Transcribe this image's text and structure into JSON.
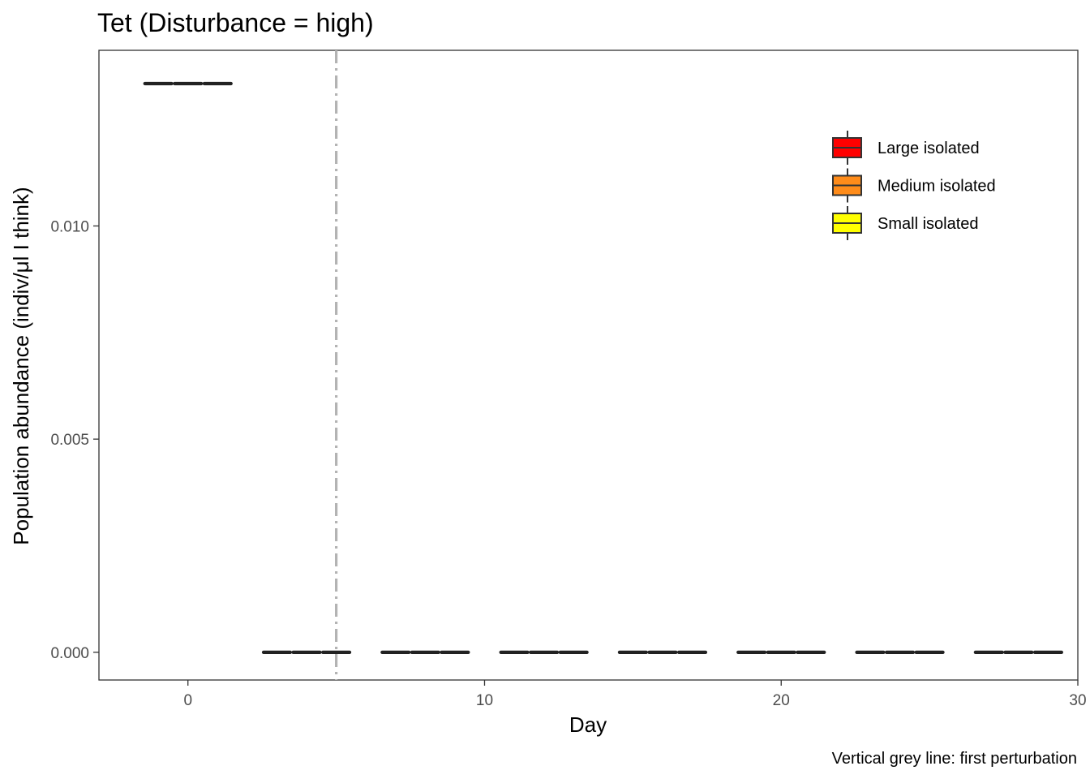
{
  "chart_data": {
    "type": "boxplot",
    "title": "Tet (Disturbance = high)",
    "xlabel": "Day",
    "ylabel": "Population abundance (indiv/μl I think)",
    "caption": "Vertical grey line: first perturbation",
    "xlim": [
      -3,
      30
    ],
    "ylim": [
      -0.00065,
      0.01412
    ],
    "x_ticks": [
      0,
      10,
      20,
      30
    ],
    "x_tick_labels": [
      "0",
      "10",
      "20",
      "30"
    ],
    "y_ticks": [
      0.0,
      0.005,
      0.01
    ],
    "y_tick_labels": [
      "0.000",
      "0.005",
      "0.010"
    ],
    "grid": false,
    "legend_position": "top-right",
    "vline": {
      "x": 5,
      "color": "#b3b3b3",
      "style": "dash-dot",
      "label": "first perturbation"
    },
    "series": [
      {
        "name": "Large isolated",
        "color": "#ff0000",
        "values": [
          {
            "day": 0,
            "value": 0.01334
          },
          {
            "day": 4,
            "value": 0
          },
          {
            "day": 8,
            "value": 0
          },
          {
            "day": 12,
            "value": 0
          },
          {
            "day": 16,
            "value": 0
          },
          {
            "day": 20,
            "value": 0
          },
          {
            "day": 24,
            "value": 0
          },
          {
            "day": 28,
            "value": 0
          }
        ]
      },
      {
        "name": "Medium isolated",
        "color": "#ff8c1a",
        "values": [
          {
            "day": 0,
            "value": 0.01334
          },
          {
            "day": 4,
            "value": 0
          },
          {
            "day": 8,
            "value": 0
          },
          {
            "day": 12,
            "value": 0
          },
          {
            "day": 16,
            "value": 0
          },
          {
            "day": 20,
            "value": 0
          },
          {
            "day": 24,
            "value": 0
          },
          {
            "day": 28,
            "value": 0
          }
        ]
      },
      {
        "name": "Small isolated",
        "color": "#ffff00",
        "values": [
          {
            "day": 0,
            "value": 0.01334
          },
          {
            "day": 4,
            "value": 0
          },
          {
            "day": 8,
            "value": 0
          },
          {
            "day": 12,
            "value": 0
          },
          {
            "day": 16,
            "value": 0
          },
          {
            "day": 20,
            "value": 0
          },
          {
            "day": 24,
            "value": 0
          },
          {
            "day": 28,
            "value": 0
          }
        ]
      }
    ]
  }
}
